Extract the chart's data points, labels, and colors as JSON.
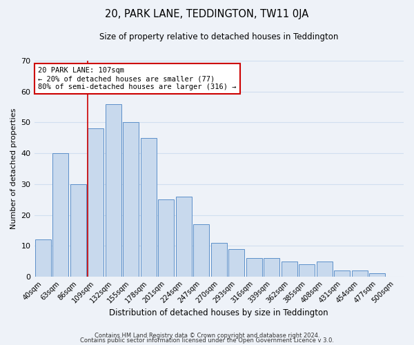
{
  "title": "20, PARK LANE, TEDDINGTON, TW11 0JA",
  "subtitle": "Size of property relative to detached houses in Teddington",
  "xlabel": "Distribution of detached houses by size in Teddington",
  "ylabel": "Number of detached properties",
  "footer_line1": "Contains HM Land Registry data © Crown copyright and database right 2024.",
  "footer_line2": "Contains public sector information licensed under the Open Government Licence v 3.0.",
  "bar_labels": [
    "40sqm",
    "63sqm",
    "86sqm",
    "109sqm",
    "132sqm",
    "155sqm",
    "178sqm",
    "201sqm",
    "224sqm",
    "247sqm",
    "270sqm",
    "293sqm",
    "316sqm",
    "339sqm",
    "362sqm",
    "385sqm",
    "408sqm",
    "431sqm",
    "454sqm",
    "477sqm",
    "500sqm"
  ],
  "bar_values": [
    12,
    40,
    30,
    48,
    56,
    50,
    45,
    25,
    26,
    17,
    11,
    9,
    6,
    6,
    5,
    4,
    5,
    2,
    2,
    1,
    0
  ],
  "bar_color": "#c8d9ed",
  "bar_edge_color": "#5b8fc9",
  "annotation_line1": "20 PARK LANE: 107sqm",
  "annotation_line2": "← 20% of detached houses are smaller (77)",
  "annotation_line3": "80% of semi-detached houses are larger (316) →",
  "annotation_box_color": "#ffffff",
  "annotation_box_edge_color": "#cc0000",
  "vline_x_index": 3,
  "vline_color": "#cc0000",
  "ylim": [
    0,
    70
  ],
  "yticks": [
    0,
    10,
    20,
    30,
    40,
    50,
    60,
    70
  ],
  "grid_color": "#d0dff0",
  "background_color": "#eef2f8"
}
